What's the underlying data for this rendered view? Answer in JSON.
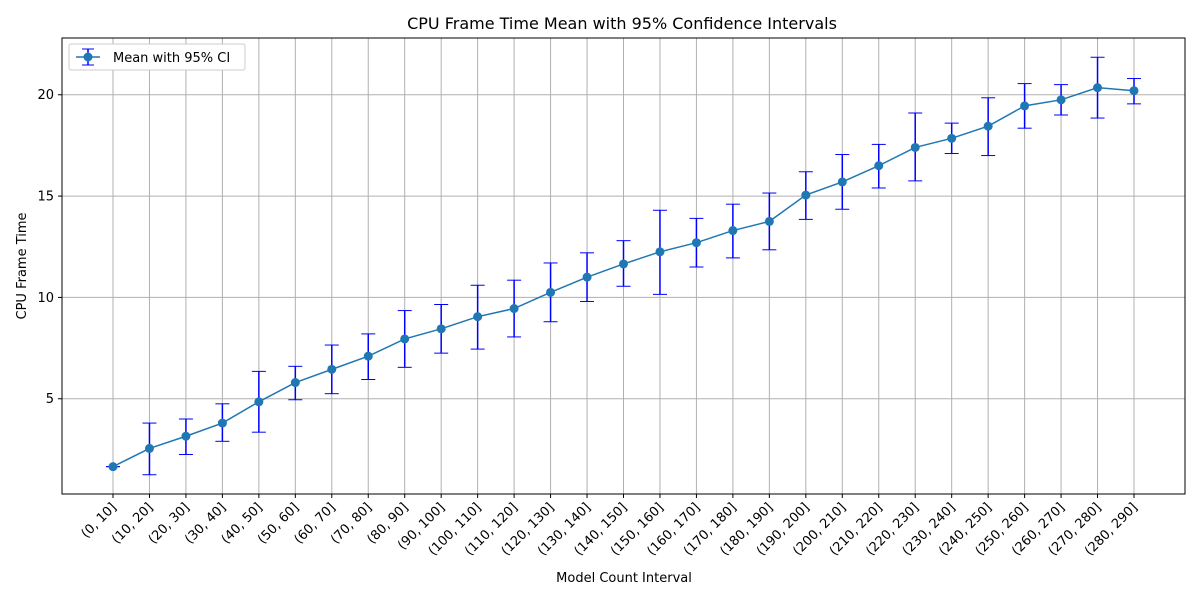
{
  "chart_data": {
    "type": "line",
    "title": "CPU Frame Time Mean with 95% Confidence Intervals",
    "xlabel": "Model Count Interval",
    "ylabel": "CPU Frame Time",
    "categories": [
      "(0, 10]",
      "(10, 20]",
      "(20, 30]",
      "(30, 40]",
      "(40, 50]",
      "(50, 60]",
      "(60, 70]",
      "(70, 80]",
      "(80, 90]",
      "(90, 100]",
      "(100, 110]",
      "(110, 120]",
      "(120, 130]",
      "(130, 140]",
      "(140, 150]",
      "(150, 160]",
      "(160, 170]",
      "(170, 180]",
      "(180, 190]",
      "(190, 200]",
      "(200, 210]",
      "(210, 220]",
      "(220, 230]",
      "(230, 240]",
      "(240, 250]",
      "(250, 260]",
      "(260, 270]",
      "(270, 280]",
      "(280, 290]"
    ],
    "series": [
      {
        "name": "Mean with 95% CI",
        "values": [
          1.65,
          2.55,
          3.15,
          3.8,
          4.85,
          5.8,
          6.45,
          7.1,
          7.95,
          8.45,
          9.05,
          9.45,
          10.25,
          11.0,
          11.65,
          12.25,
          12.7,
          13.3,
          13.75,
          15.05,
          15.7,
          16.5,
          17.4,
          17.85,
          18.45,
          19.45,
          19.75,
          20.35,
          20.2
        ],
        "ci_lower": [
          1.65,
          1.25,
          2.25,
          2.9,
          3.35,
          4.95,
          5.25,
          5.95,
          6.55,
          7.25,
          7.45,
          8.05,
          8.8,
          9.8,
          10.55,
          10.15,
          11.5,
          11.95,
          12.35,
          13.85,
          14.35,
          15.4,
          15.75,
          17.1,
          17.0,
          18.35,
          19.0,
          18.85,
          19.55
        ],
        "ci_upper": [
          1.65,
          3.8,
          4.0,
          4.75,
          6.35,
          6.6,
          7.65,
          8.2,
          9.35,
          9.65,
          10.6,
          10.85,
          11.7,
          12.2,
          12.8,
          14.3,
          13.9,
          14.6,
          15.15,
          16.2,
          17.05,
          17.55,
          19.1,
          18.6,
          19.85,
          20.55,
          20.5,
          21.85,
          20.8
        ]
      }
    ],
    "yticks": [
      5,
      10,
      15,
      20
    ],
    "ylim": [
      0.3,
      22.8
    ],
    "grid": true,
    "legend_position": "upper-left",
    "colors": {
      "line": "#1f77b4",
      "marker": "#1f77b4",
      "errorbar": "#0000ff",
      "grid": "#b0b0b0"
    }
  }
}
